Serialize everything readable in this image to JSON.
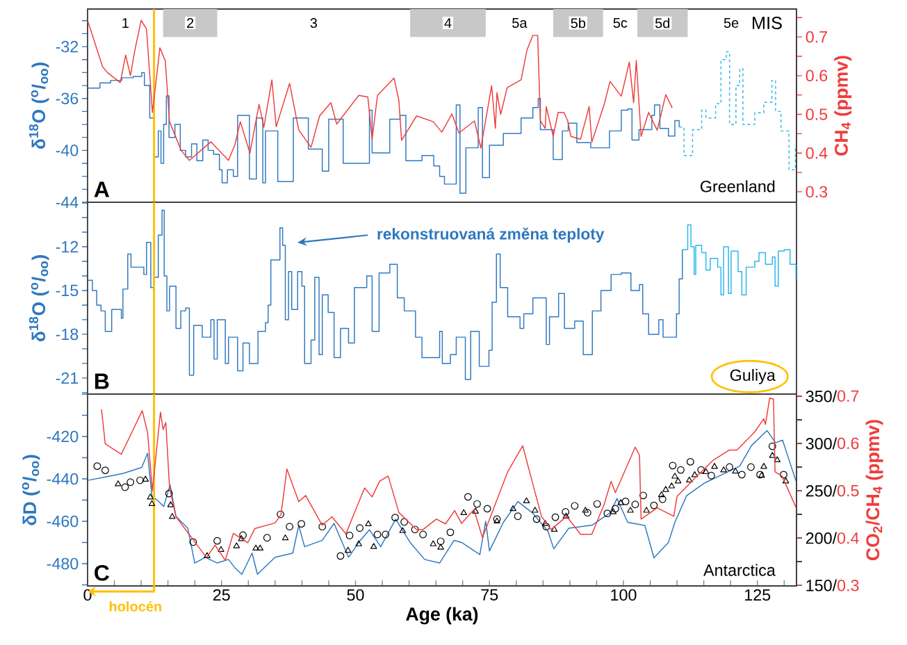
{
  "chart_data": [
    {
      "type": "line",
      "title": "A",
      "ylabel": "δ$^{18}$O ($^{o}$/$_{oo}$)",
      "y2label": "CH$_{4}$ (ppmv)",
      "annotations": [
        "Greenland",
        "MIS",
        "1",
        "3",
        "5a",
        "5c",
        "5e"
      ],
      "xlim": [
        0,
        132.3
      ],
      "ylim": [
        -44,
        -29.1
      ],
      "yticks": [
        -44,
        {
          "value": -43,
          "label": null
        },
        {
          "value": -42,
          "label": null
        },
        {
          "value": -41,
          "label": null
        },
        -40,
        {
          "value": -39,
          "label": null
        },
        {
          "value": -38,
          "label": null
        },
        {
          "value": -37,
          "label": null
        },
        -36,
        {
          "value": -35,
          "label": null
        },
        {
          "value": -34,
          "label": null
        },
        {
          "value": -33,
          "label": null
        },
        -32,
        {
          "value": -31,
          "label": null
        },
        {
          "value": -30,
          "label": null
        }
      ],
      "y2lim": [
        0.273,
        0.772
      ],
      "y2ticks": [
        0.3,
        {
          "value": 0.35,
          "label": null
        },
        0.4,
        {
          "value": 0.45,
          "label": null
        },
        0.5,
        {
          "value": 0.55,
          "label": null
        },
        0.6,
        {
          "value": 0.65,
          "label": null
        },
        0.7,
        {
          "value": 0.75,
          "label": null
        }
      ],
      "tick_labels": "y",
      "bands": [
        {
          "axis": "x",
          "from": 14.1,
          "to": 24.2,
          "label": "2",
          "color": "#c8c8c8"
        },
        {
          "axis": "x",
          "from": 60.2,
          "to": 74.3,
          "label": "4",
          "color": "#c8c8c8"
        },
        {
          "axis": "x",
          "from": 86.9,
          "to": 96.2,
          "label": "5b",
          "color": "#c8c8c8"
        },
        {
          "axis": "x",
          "from": 102.6,
          "to": 112.0,
          "label": "5d",
          "color": "#c8c8c8"
        }
      ],
      "ref_lines": [
        {
          "axis": "x",
          "value": 12.4,
          "color": "#ffc000"
        }
      ],
      "series": [
        {
          "type": "step",
          "color": "#2e78bf",
          "x": [
            0,
            2.3,
            4.3,
            6.4,
            8.5,
            10.1,
            10.6,
            11.6,
            12.4,
            13.2,
            13.7,
            14.2,
            14.7,
            15.2,
            16.3,
            17.3,
            18.3,
            19.4,
            20.4,
            21.5,
            22.5,
            23.5,
            24.6,
            25.1,
            26.1,
            27.2,
            28.0,
            30.2,
            31.5,
            32.7,
            33.2,
            35.5,
            38.4,
            41.2,
            43.8,
            45.0,
            47.7,
            52.6,
            53.1,
            56.4,
            58.3,
            59.4,
            62.4,
            64.6,
            65.7,
            66.6,
            68.8,
            69.5,
            70.6,
            72.9,
            73.7,
            75.0,
            77.6,
            80.9,
            83.1,
            84.1,
            84.5,
            86.9,
            88.6,
            89.7,
            91.3,
            93.9,
            97.4,
            99.6,
            100.8,
            101.6,
            102.9,
            105.3,
            105.8,
            106.8,
            108.4,
            109.6,
            110.4
          ],
          "values": [
            -35.2,
            -34.8,
            -34.6,
            -34.4,
            -34.3,
            -34.0,
            -35.0,
            -37.5,
            -40.5,
            -38.5,
            -41.0,
            -38.0,
            -35.8,
            -39.0,
            -38.0,
            -40.0,
            -40.5,
            -39.5,
            -40.8,
            -39.2,
            -40.0,
            -40.3,
            -41.5,
            -42.5,
            -41.5,
            -42.0,
            -37.3,
            -42.2,
            -37.5,
            -42.5,
            -38.5,
            -42.4,
            -37.5,
            -39.9,
            -41.6,
            -37.6,
            -41.0,
            -36.9,
            -40.2,
            -37.6,
            -37.3,
            -40.8,
            -40.4,
            -41.2,
            -42.0,
            -42.6,
            -36.5,
            -43.3,
            -39.8,
            -36.7,
            -42.1,
            -39.6,
            -38.7,
            -37.5,
            -36.7,
            -36.0,
            -38.4,
            -40.7,
            -38.5,
            -37.9,
            -39.4,
            -39.8,
            -38.5,
            -36.9,
            -36.8,
            -39.2,
            -38.4,
            -37.3,
            -36.5,
            -38.3,
            -38.9,
            -37.7,
            -38.2
          ]
        },
        {
          "type": "step",
          "color": "#29b6ec",
          "line_style": "dashed",
          "x": [
            110.4,
            111.3,
            112.1,
            112.9,
            114.6,
            115.4,
            117.2,
            118.2,
            119.2,
            119.8,
            121.0,
            121.7,
            122.3,
            124.5,
            126.2,
            127.7,
            128.4,
            129.4,
            130.9,
            132.1
          ],
          "values": [
            -38.2,
            -40.4,
            -40.4,
            -38.4,
            -36.9,
            -37.5,
            -36.4,
            -33.0,
            -32.4,
            -38.0,
            -35.0,
            -33.7,
            -38.0,
            -37.1,
            -36.3,
            -34.6,
            -37.0,
            -38.5,
            -41.5,
            -39.6
          ]
        },
        {
          "type": "line",
          "axis": "y2",
          "color": "#f03c3c",
          "x": [
            0,
            2.8,
            3.7,
            6.1,
            7.1,
            8.0,
            8.8,
            10.0,
            11.0,
            12.1,
            13.5,
            14.5,
            15.3,
            17.5,
            19.0,
            23.0,
            26.3,
            27.5,
            28.5,
            30.3,
            32.0,
            32.9,
            34.4,
            35.2,
            37.7,
            39.4,
            41.7,
            43.3,
            45.4,
            46.5,
            50.6,
            52.3,
            53.1,
            54.1,
            57.2,
            58.1,
            58.6,
            61.4,
            64.5,
            66.1,
            68.0,
            69.3,
            72.2,
            73.4,
            75.4,
            76.1,
            76.4,
            77.1,
            78.3,
            80.9,
            82.0,
            83.1,
            84.0,
            84.5,
            85.4,
            85.6,
            86.9,
            87.8,
            88.9,
            89.6,
            90.2,
            92.0,
            93.6,
            94.1,
            96.4,
            97.5,
            99.6,
            101.1,
            101.9,
            102.4,
            103.3,
            104.7,
            106.3,
            107.9,
            109.1
          ],
          "values": [
            0.743,
            0.623,
            0.608,
            0.582,
            0.653,
            0.6,
            0.664,
            0.743,
            0.72,
            0.505,
            0.672,
            0.638,
            0.481,
            0.406,
            0.381,
            0.429,
            0.381,
            0.422,
            0.481,
            0.4,
            0.526,
            0.467,
            0.589,
            0.468,
            0.58,
            0.46,
            0.415,
            0.496,
            0.53,
            0.475,
            0.549,
            0.545,
            0.436,
            0.549,
            0.594,
            0.535,
            0.433,
            0.496,
            0.481,
            0.454,
            0.501,
            0.452,
            0.483,
            0.413,
            0.574,
            0.464,
            0.556,
            0.5,
            0.569,
            0.589,
            0.666,
            0.704,
            0.704,
            0.483,
            0.464,
            0.52,
            0.443,
            0.505,
            0.505,
            0.483,
            0.443,
            0.436,
            0.52,
            0.428,
            0.525,
            0.585,
            0.547,
            0.635,
            0.53,
            0.639,
            0.443,
            0.505,
            0.459,
            0.551,
            0.517
          ]
        }
      ]
    },
    {
      "type": "step",
      "title": "B",
      "ylabel": "δ$^{18}$O ($^{o}$/$_{oo}$)",
      "annotations": [
        "Guliya",
        "rekonstruovaná změna teploty"
      ],
      "xlim": [
        0,
        132.3
      ],
      "ylim": [
        -22.1,
        -8.95
      ],
      "yticks": [
        {
          "value": -22,
          "label": null
        },
        -21,
        {
          "value": -20,
          "label": null
        },
        {
          "value": -19,
          "label": null
        },
        -18,
        {
          "value": -17,
          "label": null
        },
        {
          "value": -16,
          "label": null
        },
        -15,
        {
          "value": -14,
          "label": null
        },
        {
          "value": -13,
          "label": null
        },
        -12,
        {
          "value": -11,
          "label": null
        },
        {
          "value": -10,
          "label": null
        },
        {
          "value": -9,
          "label": null
        }
      ],
      "tick_labels": "y",
      "ref_lines": [
        {
          "axis": "x",
          "value": 12.4,
          "color": "#ffc000"
        }
      ],
      "series": [
        {
          "color": "#2e78bf",
          "x": [
            0,
            0.9,
            1.7,
            2.5,
            3.3,
            4.5,
            6.3,
            6.6,
            7.5,
            8.1,
            10.5,
            11.0,
            11.8,
            12.4,
            13.2,
            13.9,
            14.3,
            14.8,
            15.3,
            16.5,
            17.4,
            18.3,
            19.0,
            19.8,
            21.4,
            23.0,
            23.6,
            24.2,
            25.7,
            26.3,
            28.0,
            29.0,
            30.2,
            31.3,
            31.8,
            33.2,
            33.7,
            34.2,
            35.9,
            36.4,
            36.9,
            37.5,
            38.1,
            39.2,
            40.0,
            40.5,
            41.7,
            42.4,
            43.2,
            43.8,
            44.9,
            46.0,
            47.2,
            48.7,
            49.8,
            52.1,
            53.1,
            54.4,
            56.4,
            57.8,
            59.1,
            61.2,
            62.4,
            65.7,
            66.2,
            67.7,
            68.8,
            70.5,
            71.5,
            73.1,
            74.9,
            75.5,
            76.3,
            77.0,
            78.4,
            80.7,
            81.4,
            83.1,
            85.6,
            86.2,
            87.9,
            89.0,
            90.9,
            92.5,
            94.2,
            95.8,
            97.7,
            99.6,
            101.4,
            103.0,
            103.6,
            104.7,
            106.6,
            107.4,
            109.6,
            109.9,
            110.4,
            111.0
          ],
          "values": [
            -14.3,
            -15.0,
            -16.0,
            -16.4,
            -17.8,
            -16.3,
            -16.9,
            -14.9,
            -12.5,
            -13.4,
            -13.9,
            -11.7,
            -14.8,
            -14.1,
            -11.2,
            -9.5,
            -14.0,
            -16.4,
            -14.7,
            -17.6,
            -16.4,
            -16.2,
            -20.8,
            -17.4,
            -18.2,
            -17.0,
            -19.7,
            -17.0,
            -20.0,
            -18.2,
            -20.5,
            -18.6,
            -20.0,
            -20.0,
            -17.8,
            -17.2,
            -16.0,
            -12.9,
            -10.7,
            -11.9,
            -17.0,
            -13.7,
            -16.3,
            -13.7,
            -14.7,
            -20.0,
            -18.4,
            -14.1,
            -19.4,
            -15.3,
            -16.5,
            -19.6,
            -17.6,
            -18.6,
            -14.8,
            -14.0,
            -17.8,
            -13.8,
            -13.2,
            -15.5,
            -16.4,
            -18.2,
            -19.6,
            -17.8,
            -20.0,
            -19.4,
            -18.2,
            -21.1,
            -17.8,
            -20.2,
            -19.1,
            -15.8,
            -12.5,
            -14.8,
            -16.8,
            -17.6,
            -16.6,
            -15.5,
            -18.7,
            -16.8,
            -15.2,
            -17.6,
            -17.1,
            -19.4,
            -16.4,
            -15.0,
            -13.9,
            -13.8,
            -15.0,
            -14.6,
            -16.6,
            -18.0,
            -17.0,
            -18.2,
            -18.2,
            -16.6,
            -14.2,
            -12.2
          ]
        },
        {
          "color": "#29b6ec",
          "x": [
            111.0,
            112.0,
            112.6,
            113.2,
            113.5,
            114.6,
            115.4,
            116.2,
            117.6,
            118.2,
            118.7,
            119.6,
            120.1,
            121.4,
            122.1,
            122.9,
            124.5,
            125.3,
            126.5,
            127.8,
            128.3,
            128.9,
            130.0,
            131.1,
            132.2
          ],
          "values": [
            -12.2,
            -10.5,
            -12.0,
            -13.9,
            -11.9,
            -12.4,
            -13.6,
            -12.8,
            -13.4,
            -15.3,
            -12.0,
            -15.2,
            -12.3,
            -13.7,
            -15.3,
            -13.4,
            -13.0,
            -12.4,
            -13.2,
            -12.7,
            -14.7,
            -12.3,
            -12.2,
            -13.2,
            -14.2
          ]
        }
      ]
    },
    {
      "type": "line",
      "title": "C",
      "xlabel": "Age (ka)",
      "ylabel": "δD ($^{o}$/$_{oo}$)",
      "y2label": "CO$_{2}$/CH$_{4}$ (ppmv)",
      "annotations": [
        "Antarctica"
      ],
      "xlim": [
        0,
        132.3
      ],
      "ylim": [
        -490.5,
        -400
      ],
      "xticks": [
        0,
        {
          "value": 5,
          "label": null
        },
        {
          "value": 10,
          "label": null
        },
        {
          "value": 15,
          "label": null
        },
        {
          "value": 20,
          "label": null
        },
        25,
        {
          "value": 30,
          "label": null
        },
        {
          "value": 35,
          "label": null
        },
        {
          "value": 40,
          "label": null
        },
        {
          "value": 45,
          "label": null
        },
        50,
        {
          "value": 55,
          "label": null
        },
        {
          "value": 60,
          "label": null
        },
        {
          "value": 65,
          "label": null
        },
        {
          "value": 70,
          "label": null
        },
        75,
        {
          "value": 80,
          "label": null
        },
        {
          "value": 85,
          "label": null
        },
        {
          "value": 90,
          "label": null
        },
        {
          "value": 95,
          "label": null
        },
        100,
        {
          "value": 105,
          "label": null
        },
        {
          "value": 110,
          "label": null
        },
        {
          "value": 115,
          "label": null
        },
        {
          "value": 120,
          "label": null
        },
        125,
        {
          "value": 130,
          "label": null
        }
      ],
      "yticks": [
        {
          "value": -490,
          "label": null
        },
        -480,
        {
          "value": -470,
          "label": null
        },
        -460,
        {
          "value": -450,
          "label": null
        },
        -440,
        {
          "value": -430,
          "label": null
        },
        -420,
        {
          "value": -410,
          "label": null
        },
        {
          "value": -400,
          "label": null
        }
      ],
      "y2lim": [
        149.3,
        352.2
      ],
      "y2ticks": [
        {
          "value": 150,
          "label": "150/"
        },
        {
          "value": 175,
          "label": null
        },
        {
          "value": 200,
          "label": "200/"
        },
        {
          "value": 225,
          "label": null
        },
        {
          "value": 250,
          "label": "250/"
        },
        {
          "value": 275,
          "label": null
        },
        {
          "value": 300,
          "label": "300/"
        },
        {
          "value": 325,
          "label": null
        },
        {
          "value": 350,
          "label": "350/"
        }
      ],
      "y3lim": [
        0.299,
        0.704
      ],
      "y3ticks": [
        0.3,
        0.4,
        0.5,
        0.6,
        0.7
      ],
      "ref_lines": [
        {
          "axis": "x",
          "value": 12.4,
          "color": "#ffc000",
          "label": "holocén"
        }
      ],
      "series": [
        {
          "color": "#2e78bf",
          "x": [
            0,
            3.5,
            6.7,
            10.1,
            11.2,
            12.0,
            13.2,
            14.2,
            15.4,
            16.5,
            18.7,
            20.0,
            22.0,
            24.2,
            26.3,
            27.5,
            28.8,
            30.7,
            31.7,
            35.0,
            38.3,
            39.4,
            40.5,
            43.8,
            46.0,
            48.7,
            50.9,
            52.6,
            54.7,
            57.5,
            60.2,
            62.9,
            65.7,
            68.4,
            69.8,
            73.2,
            74.3,
            75.0,
            77.6,
            80.3,
            83.0,
            85.9,
            87.0,
            89.8,
            94.2,
            97.5,
            98.8,
            100.8,
            104.0,
            105.7,
            108.4,
            109.6,
            111.8,
            115.1,
            118.4,
            121.7,
            123.9,
            126.8,
            128.4,
            129.7,
            131.1,
            132.2
          ],
          "values": [
            -440.7,
            -439,
            -437.4,
            -434.6,
            -427.9,
            -448,
            -450.5,
            -453,
            -442.8,
            -457.7,
            -463.3,
            -479.7,
            -477,
            -479.7,
            -478,
            -482,
            -485,
            -475,
            -485,
            -477,
            -475,
            -462,
            -472,
            -469,
            -461,
            -477,
            -469,
            -464,
            -472,
            -459,
            -470,
            -478,
            -479.7,
            -469,
            -470,
            -475.7,
            -460,
            -474,
            -460.5,
            -450.7,
            -456,
            -464.6,
            -473,
            -463.3,
            -461.8,
            -456,
            -449.3,
            -460.5,
            -462,
            -477.2,
            -470,
            -460.5,
            -447.9,
            -442,
            -438,
            -434,
            -424.3,
            -417.2,
            -423,
            -421.7,
            -432.5,
            -441
          ]
        },
        {
          "axis": "y3",
          "color": "#f03c3c",
          "x": [
            2.6,
            3.3,
            6.3,
            10.2,
            11.2,
            12.1,
            13.6,
            14.1,
            14.6,
            15.3,
            16.5,
            19.8,
            22.2,
            23.8,
            25.7,
            27.2,
            29.9,
            31.2,
            35.0,
            36.1,
            37.2,
            39.4,
            40.7,
            43.8,
            45.6,
            48.2,
            51.7,
            53.1,
            54.5,
            56.1,
            58.1,
            61.4,
            62.6,
            65.1,
            66.8,
            68.5,
            69.8,
            72.1,
            73.7,
            78.4,
            81.2,
            84.7,
            86.5,
            89.4,
            92.0,
            94.1,
            96.4,
            97.7,
            98.5,
            102.2,
            103.0,
            103.3,
            106.3,
            109.4,
            110.0,
            114.0,
            116.7,
            119.8,
            121.2,
            124.5,
            126.2,
            126.5,
            127.3,
            128.0,
            128.3,
            129.6,
            132.2
          ],
          "values": [
            0.672,
            0.599,
            0.577,
            0.669,
            0.623,
            0.5,
            0.666,
            0.629,
            0.644,
            0.506,
            0.445,
            0.395,
            0.359,
            0.385,
            0.353,
            0.41,
            0.39,
            0.42,
            0.432,
            0.45,
            0.546,
            0.477,
            0.49,
            0.427,
            0.445,
            0.409,
            0.506,
            0.487,
            0.52,
            0.531,
            0.454,
            0.418,
            0.418,
            0.44,
            0.43,
            0.458,
            0.431,
            0.46,
            0.401,
            0.54,
            0.595,
            0.446,
            0.418,
            0.446,
            0.408,
            0.408,
            0.471,
            0.52,
            0.496,
            0.592,
            0.575,
            0.44,
            0.464,
            0.446,
            0.488,
            0.534,
            0.564,
            0.586,
            0.586,
            0.624,
            0.652,
            0.64,
            0.696,
            0.693,
            0.54,
            0.531,
            0.465
          ]
        },
        {
          "type": "scatter",
          "axis": "y2",
          "marker": "circle",
          "color": "#000000",
          "x": [
            1.8,
            3.3,
            7.0,
            8.0,
            9.8,
            15.2,
            19.7,
            24.2,
            29.0,
            33.5,
            36.0,
            37.7,
            39.9,
            43.8,
            47.2,
            48.9,
            50.8,
            54.1,
            55.6,
            57.4,
            59.1,
            61.1,
            62.6,
            65.9,
            67.7,
            71.0,
            72.7,
            74.6,
            76.4,
            80.3,
            83.8,
            85.6,
            87.3,
            89.2,
            90.9,
            93.3,
            95.1,
            97.0,
            98.5,
            100.4,
            102.2,
            103.7,
            105.7,
            107.3,
            109.2,
            110.7,
            112.5,
            114.5,
            116.4,
            119.8,
            122.1,
            123.8,
            125.5,
            127.8,
            129.9
          ],
          "values": [
            276,
            271.6,
            253.7,
            259,
            261,
            247,
            195.6,
            197,
            203,
            200.2,
            225,
            212,
            215,
            212,
            181,
            202.6,
            210.5,
            203.7,
            203.7,
            221.6,
            217,
            209,
            203.7,
            196.5,
            206,
            243.5,
            236,
            231,
            220,
            223,
            220,
            212,
            222,
            227.6,
            234,
            226.7,
            236,
            226,
            231,
            238.7,
            235.5,
            245,
            234.5,
            241,
            276.6,
            272,
            280.6,
            272,
            266,
            275,
            267,
            275,
            267,
            297,
            267
          ]
        },
        {
          "type": "scatter",
          "axis": "y2",
          "marker": "triangle",
          "color": "#000000",
          "x": [
            5.7,
            10.8,
            11.7,
            12.0,
            15.5,
            15.8,
            22.3,
            24.9,
            27.8,
            28.7,
            31.4,
            32.2,
            36.9,
            48.6,
            50.6,
            52.4,
            53.4,
            58.8,
            64.5,
            65.9,
            70.2,
            72.4,
            76.4,
            79.4,
            81.9,
            83.5,
            85.4,
            87.1,
            89.3,
            92.9,
            98.1,
            99.5,
            101.3,
            104.3,
            107.1,
            107.9,
            109.0,
            109.6,
            110.2,
            112.3,
            113.3,
            115.4,
            117.0,
            118.7,
            120.9,
            125.8,
            126.2,
            127.8,
            128.7,
            130.3
          ],
          "values": [
            257,
            261.8,
            243,
            236,
            234.8,
            222.4,
            181,
            187.5,
            191.4,
            199,
            189,
            189,
            199.8,
            186.7,
            193.5,
            214.7,
            190.7,
            207.5,
            193.5,
            189.9,
            226.5,
            228,
            217.6,
            230.7,
            239,
            229,
            215,
            208.8,
            222.8,
            229,
            227.5,
            237,
            229,
            229,
            245.4,
            251,
            254.7,
            265,
            260,
            261,
            266.6,
            269.8,
            275.4,
            271.7,
            270.4,
            266,
            275.4,
            287,
            282.4,
            260
          ]
        }
      ]
    }
  ]
}
